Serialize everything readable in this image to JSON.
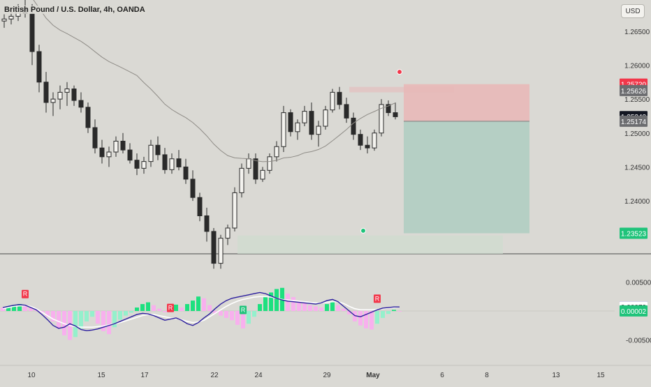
{
  "title": "British Pound / U.S. Dollar, 4h, OANDA",
  "currency_label": "USD",
  "colors": {
    "background": "#dad9d4",
    "candle_body": "#2a2a2a",
    "ma_line": "#8f8c87",
    "stop_zone": "#e8b8b8",
    "target_zone": "#b3cfc3",
    "volume_zone": "#cfdccf",
    "badge_red": "#f2374a",
    "badge_dark": "#131722",
    "badge_gray": "#6c6d70",
    "badge_green": "#1fc37a",
    "badge_navy": "#2b1fa3",
    "hist_green": "#1de07f",
    "hist_pink": "#f8b0ee",
    "hist_mint": "#94f0cc",
    "macd_line": "#2c1e9e",
    "signal_line": "#ffffff"
  },
  "chart_data": [
    {
      "type": "candlestick",
      "title": "British Pound / U.S. Dollar, 4h, OANDA",
      "price_scale": "right",
      "ylim": [
        1.2322,
        1.2696
      ],
      "y_ticks": [
        "1.26500",
        "1.26000",
        "1.25500",
        "1.25000",
        "1.24500",
        "1.24000"
      ],
      "y_tick_values": [
        1.265,
        1.26,
        1.255,
        1.25,
        1.245,
        1.24
      ],
      "price_labels": [
        {
          "text": "1.25720",
          "value": 1.2572,
          "color": "red"
        },
        {
          "text": "1.25626",
          "value": 1.25626,
          "color": "gray"
        },
        {
          "text": "1.25242",
          "value": 1.25242,
          "color": "dark"
        },
        {
          "text": "1.25174",
          "value": 1.25174,
          "color": "gray"
        },
        {
          "text": "1.23523",
          "value": 1.23523,
          "color": "green"
        }
      ],
      "trade_zone": {
        "entry": 1.25174,
        "stop": 1.2572,
        "target": 1.23523
      },
      "ohlc": [
        [
          1.2665,
          1.2675,
          1.2655,
          1.2668
        ],
        [
          1.2668,
          1.2685,
          1.266,
          1.2672
        ],
        [
          1.2672,
          1.269,
          1.2665,
          1.2684
        ],
        [
          1.2684,
          1.27,
          1.267,
          1.2676
        ],
        [
          1.2676,
          1.269,
          1.26,
          1.262
        ],
        [
          1.262,
          1.263,
          1.256,
          1.2575
        ],
        [
          1.2575,
          1.259,
          1.253,
          1.2545
        ],
        [
          1.2545,
          1.256,
          1.2525,
          1.255
        ],
        [
          1.255,
          1.257,
          1.2535,
          1.256
        ],
        [
          1.256,
          1.2575,
          1.254,
          1.2565
        ],
        [
          1.2565,
          1.257,
          1.254,
          1.2548
        ],
        [
          1.2548,
          1.256,
          1.253,
          1.2538
        ],
        [
          1.2538,
          1.2545,
          1.25,
          1.2508
        ],
        [
          1.2508,
          1.252,
          1.247,
          1.2478
        ],
        [
          1.2478,
          1.249,
          1.2455,
          1.2465
        ],
        [
          1.2465,
          1.248,
          1.245,
          1.2472
        ],
        [
          1.2472,
          1.2495,
          1.2465,
          1.2488
        ],
        [
          1.2488,
          1.25,
          1.247,
          1.2475
        ],
        [
          1.2475,
          1.2485,
          1.2455,
          1.246
        ],
        [
          1.246,
          1.247,
          1.2438,
          1.2448
        ],
        [
          1.2448,
          1.2465,
          1.244,
          1.2458
        ],
        [
          1.2458,
          1.249,
          1.245,
          1.2482
        ],
        [
          1.2482,
          1.2495,
          1.246,
          1.2468
        ],
        [
          1.2468,
          1.2478,
          1.244,
          1.2446
        ],
        [
          1.2446,
          1.247,
          1.244,
          1.2462
        ],
        [
          1.2462,
          1.2475,
          1.2445,
          1.245
        ],
        [
          1.245,
          1.2462,
          1.2425,
          1.2432
        ],
        [
          1.2432,
          1.2445,
          1.24,
          1.2405
        ],
        [
          1.2405,
          1.2412,
          1.237,
          1.2378
        ],
        [
          1.2378,
          1.239,
          1.234,
          1.2355
        ],
        [
          1.2355,
          1.236,
          1.23,
          1.2308
        ],
        [
          1.2308,
          1.235,
          1.23,
          1.2345
        ],
        [
          1.2345,
          1.2365,
          1.2335,
          1.236
        ],
        [
          1.236,
          1.242,
          1.2355,
          1.2412
        ],
        [
          1.2412,
          1.2455,
          1.2405,
          1.2448
        ],
        [
          1.2448,
          1.247,
          1.244,
          1.2462
        ],
        [
          1.2462,
          1.247,
          1.2425,
          1.2432
        ],
        [
          1.2432,
          1.245,
          1.2428,
          1.2445
        ],
        [
          1.2445,
          1.247,
          1.244,
          1.2465
        ],
        [
          1.2465,
          1.2488,
          1.2458,
          1.248
        ],
        [
          1.248,
          1.254,
          1.2472,
          1.253
        ],
        [
          1.253,
          1.2535,
          1.2495,
          1.2502
        ],
        [
          1.2502,
          1.252,
          1.249,
          1.2515
        ],
        [
          1.2515,
          1.254,
          1.251,
          1.2532
        ],
        [
          1.2532,
          1.2545,
          1.249,
          1.2498
        ],
        [
          1.2498,
          1.2518,
          1.248,
          1.251
        ],
        [
          1.251,
          1.254,
          1.2505,
          1.2534
        ],
        [
          1.2534,
          1.2565,
          1.253,
          1.256
        ],
        [
          1.256,
          1.2568,
          1.2535,
          1.2542
        ],
        [
          1.2542,
          1.2552,
          1.2515,
          1.2522
        ],
        [
          1.2522,
          1.253,
          1.249,
          1.2498
        ],
        [
          1.2498,
          1.2505,
          1.2475,
          1.2482
        ],
        [
          1.2482,
          1.2495,
          1.247,
          1.2478
        ],
        [
          1.2478,
          1.2505,
          1.2474,
          1.25
        ],
        [
          1.25,
          1.255,
          1.2495,
          1.2542
        ],
        [
          1.2542,
          1.2548,
          1.2525,
          1.253
        ],
        [
          1.253,
          1.2545,
          1.252,
          1.2524
        ]
      ]
    },
    {
      "type": "histogram",
      "subtitle": "MACD",
      "ylim": [
        -0.0082,
        0.0082
      ],
      "y_ticks": [
        "0.00500",
        "-0.00500"
      ],
      "y_tick_values": [
        0.005,
        -0.005
      ],
      "value_labels": [
        {
          "text": "0.00071",
          "value": 0.00071,
          "color": "navy"
        },
        {
          "text": "0.00070",
          "value": 0.0007,
          "color": "white"
        },
        {
          "text": "0.00002",
          "value": 2e-05,
          "color": "green"
        }
      ],
      "markers": [
        {
          "text": "R",
          "color": "red",
          "bar": 4,
          "position": "above"
        },
        {
          "text": "R",
          "color": "red",
          "bar": 30,
          "position": "above"
        },
        {
          "text": "R",
          "color": "red",
          "bar": 67,
          "position": "above"
        },
        {
          "text": "R",
          "color": "green",
          "bar": 43,
          "position": "below"
        }
      ],
      "histogram": [
        0.0006,
        0.0008,
        0.001,
        0.0012,
        0.0009,
        0.0005,
        0.0002,
        -0.0004,
        -0.001,
        -0.0018,
        -0.003,
        -0.0042,
        -0.005,
        -0.0045,
        -0.003,
        -0.0018,
        -0.001,
        -0.0022,
        -0.0035,
        -0.004,
        -0.0028,
        -0.0015,
        -0.0008,
        -0.0003,
        0.0006,
        0.0012,
        0.0015,
        0.001,
        0.0004,
        -0.0002,
        0.0009,
        0.0011,
        0.0006,
        0.0012,
        0.0018,
        0.0025,
        0.0022,
        0.001,
        -0.0004,
        -0.0008,
        -0.0012,
        -0.0016,
        -0.0024,
        -0.003,
        -0.0022,
        -0.001,
        0.0012,
        0.0024,
        0.0032,
        0.0038,
        0.004,
        0.003,
        0.0024,
        0.0018,
        0.0014,
        0.001,
        0.0008,
        0.0006,
        0.0012,
        0.0016,
        0.001,
        0.0004,
        -0.0006,
        -0.0018,
        -0.0025,
        -0.003,
        -0.0032,
        -0.0022,
        -0.0012,
        -0.0005,
        0.0002,
        0.0
      ],
      "macd": [
        0.0006,
        0.0008,
        0.001,
        0.0011,
        0.001,
        0.0006,
        0.0002,
        -0.0006,
        -0.0015,
        -0.0025,
        -0.003,
        -0.0028,
        -0.0022,
        -0.0026,
        -0.0032,
        -0.0034,
        -0.0033,
        -0.0031,
        -0.0028,
        -0.0025,
        -0.0022,
        -0.0018,
        -0.0014,
        -0.001,
        -0.0006,
        -0.0004,
        -0.0005,
        -0.0008,
        -0.0012,
        -0.0016,
        -0.0014,
        -0.0012,
        -0.0016,
        -0.0022,
        -0.0025,
        -0.002,
        -0.0012,
        -0.0005,
        0.0004,
        0.0012,
        0.0018,
        0.0022,
        0.0024,
        0.0026,
        0.0028,
        0.003,
        0.0032,
        0.003,
        0.0026,
        0.0022,
        0.0019,
        0.0017,
        0.0016,
        0.0015,
        0.0014,
        0.0013,
        0.0012,
        0.0014,
        0.0018,
        0.002,
        0.0016,
        0.0008,
        0.0,
        -0.0008,
        -0.001,
        -0.0006,
        -0.0002,
        0.0002,
        0.0005,
        0.0006,
        0.0007,
        0.0007
      ],
      "signal": [
        0.0004,
        0.0006,
        0.0008,
        0.0009,
        0.0009,
        0.0008,
        0.0004,
        -0.0002,
        -0.0008,
        -0.0014,
        -0.0018,
        -0.0022,
        -0.0025,
        -0.0027,
        -0.0028,
        -0.0028,
        -0.0028,
        -0.0027,
        -0.0026,
        -0.0024,
        -0.0022,
        -0.002,
        -0.0017,
        -0.0014,
        -0.0011,
        -0.0008,
        -0.0006,
        -0.0006,
        -0.0008,
        -0.001,
        -0.0012,
        -0.0013,
        -0.0015,
        -0.0018,
        -0.002,
        -0.0019,
        -0.0016,
        -0.001,
        -0.0004,
        0.0002,
        0.0008,
        0.0013,
        0.0017,
        0.002,
        0.0022,
        0.0024,
        0.0025,
        0.0025,
        0.0024,
        0.0022,
        0.002,
        0.0019,
        0.0018,
        0.0017,
        0.0016,
        0.0015,
        0.0014,
        0.0014,
        0.0015,
        0.0016,
        0.0016,
        0.0013,
        0.0008,
        0.0004,
        0.0002,
        0.0002,
        0.0002,
        0.0003,
        0.0004,
        0.0005,
        0.0006,
        0.0007
      ]
    }
  ],
  "x_axis": {
    "ticks": [
      "10",
      "15",
      "17",
      "22",
      "24",
      "29",
      "May",
      "6",
      "8",
      "13",
      "15"
    ],
    "bold_ticks": [
      "May"
    ]
  }
}
